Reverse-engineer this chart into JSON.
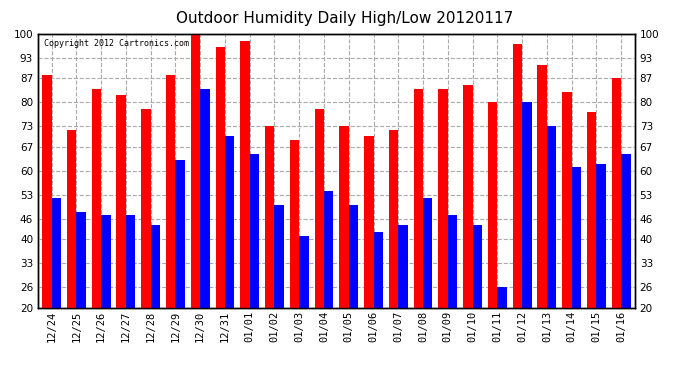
{
  "title": "Outdoor Humidity Daily High/Low 20120117",
  "copyright_text": "Copyright 2012 Cartronics.com",
  "dates": [
    "12/24",
    "12/25",
    "12/26",
    "12/27",
    "12/28",
    "12/29",
    "12/30",
    "12/31",
    "01/01",
    "01/02",
    "01/03",
    "01/04",
    "01/05",
    "01/06",
    "01/07",
    "01/08",
    "01/09",
    "01/10",
    "01/11",
    "01/12",
    "01/13",
    "01/14",
    "01/15",
    "01/16"
  ],
  "high_values": [
    88,
    72,
    84,
    82,
    78,
    88,
    100,
    96,
    98,
    73,
    69,
    78,
    73,
    70,
    72,
    84,
    84,
    85,
    80,
    97,
    91,
    83,
    77,
    87
  ],
  "low_values": [
    52,
    48,
    47,
    47,
    44,
    63,
    84,
    70,
    65,
    50,
    41,
    54,
    50,
    42,
    44,
    52,
    47,
    44,
    26,
    80,
    73,
    61,
    62,
    65
  ],
  "high_color": "#ff0000",
  "low_color": "#0000ff",
  "bg_color": "#ffffff",
  "yticks": [
    20,
    26,
    33,
    40,
    46,
    53,
    60,
    67,
    73,
    80,
    87,
    93,
    100
  ],
  "ymin": 20,
  "ymax": 100,
  "bar_width": 0.38,
  "title_fontsize": 11,
  "tick_fontsize": 7.5,
  "grid_color": "#aaaaaa"
}
